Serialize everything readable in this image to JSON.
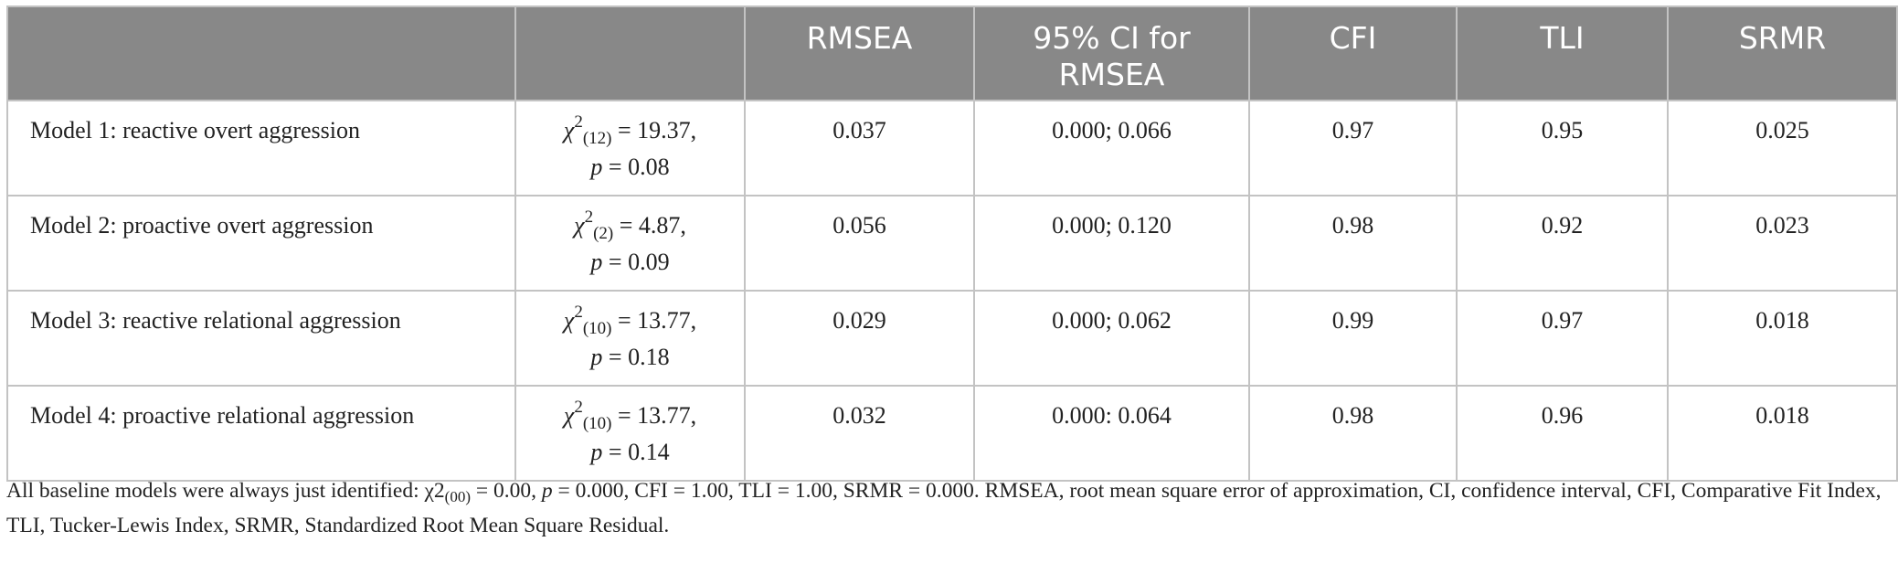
{
  "table": {
    "headers": [
      "",
      "RMSEA",
      "95% CI for RMSEA",
      "CFI",
      "TLI",
      "SRMR"
    ],
    "rows": [
      {
        "model": "Model 1: reactive overt aggression",
        "chi_df": "(12)",
        "chi_value": " = 19.37,",
        "p_value": " = 0.08",
        "rmsea": "0.037",
        "ci": "0.000; 0.066",
        "cfi": "0.97",
        "tli": "0.95",
        "srmr": "0.025"
      },
      {
        "model": "Model 2: proactive overt aggression",
        "chi_df": "(2)",
        "chi_value": " = 4.87,",
        "p_value": " = 0.09",
        "rmsea": "0.056",
        "ci": "0.000; 0.120",
        "cfi": "0.98",
        "tli": "0.92",
        "srmr": "0.023"
      },
      {
        "model": "Model 3: reactive relational aggression",
        "chi_df": "(10)",
        "chi_value": " = 13.77,",
        "p_value": " = 0.18",
        "rmsea": "0.029",
        "ci": "0.000; 0.062",
        "cfi": "0.99",
        "tli": "0.97",
        "srmr": "0.018"
      },
      {
        "model": "Model 4: proactive relational aggression",
        "chi_df": "(10)",
        "chi_value": " = 13.77,",
        "p_value": " = 0.14",
        "rmsea": "0.032",
        "ci": "0.000: 0.064",
        "cfi": "0.98",
        "tli": "0.96",
        "srmr": "0.018"
      }
    ]
  },
  "symbols": {
    "chi": "χ",
    "sup": "2",
    "p": "p"
  },
  "note": {
    "part1": "All baseline models were always just identified: χ2",
    "sub": "(00)",
    "part2": " = 0.00, ",
    "p": "p",
    "part3": " = 0.000, CFI = 1.00, TLI = 1.00, SRMR = 0.000. RMSEA, root mean square error of approximation, CI, confidence interval, CFI, Comparative Fit Index, TLI, Tucker-Lewis Index, SRMR, Standardized Root Mean Square Residual."
  }
}
